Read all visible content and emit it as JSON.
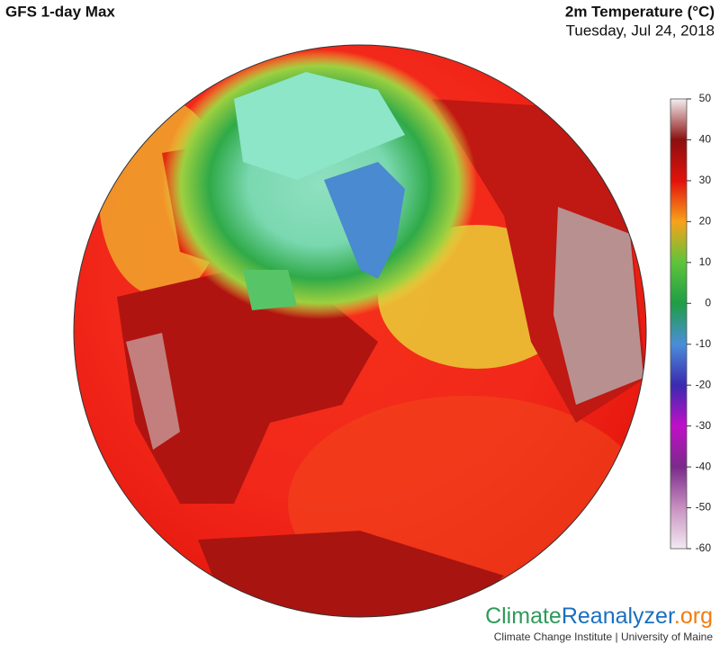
{
  "header": {
    "title": "GFS 1-day Max",
    "variable": "2m Temperature (°C)",
    "date": "Tuesday, Jul 24, 2018"
  },
  "colorbar": {
    "ticks": [
      50,
      40,
      30,
      20,
      10,
      0,
      -10,
      -20,
      -30,
      -40,
      -50,
      -60
    ],
    "colors": [
      "#f4eef0",
      "#8a1010",
      "#e2120c",
      "#f7a21a",
      "#5ec43a",
      "#1f9e45",
      "#4a8ed8",
      "#3a2ab0",
      "#c010c8",
      "#7a2a8a",
      "#c890c0",
      "#f2eaf2"
    ]
  },
  "footer": {
    "logo": [
      "Climate",
      "Reanalyzer",
      ".org"
    ],
    "logo_colors": [
      "#2f9a5a",
      "#1a6fc0",
      "#f07c10"
    ],
    "credit": "Climate Change Institute | University of Maine"
  }
}
